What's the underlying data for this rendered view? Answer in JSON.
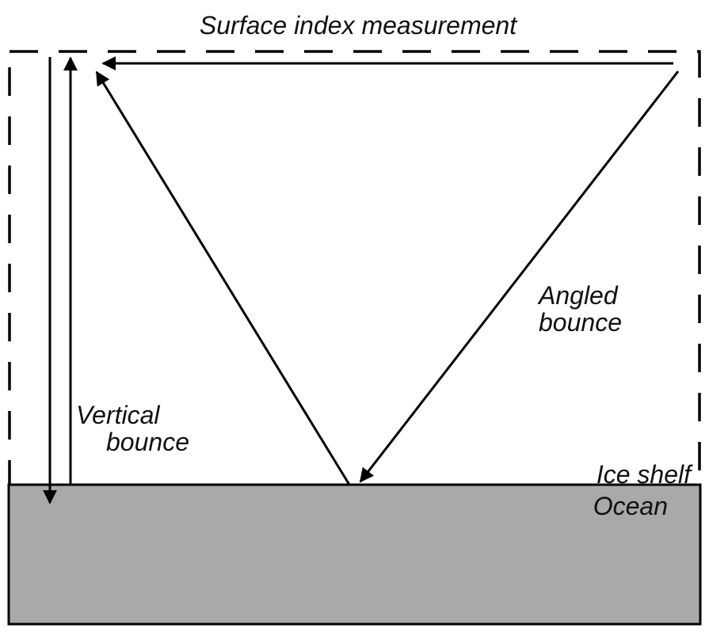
{
  "title": "Surface index measurement",
  "labels": {
    "vertical": [
      "Vertical",
      "bounce"
    ],
    "angled": [
      "Angled",
      "bounce"
    ],
    "ice_shelf": "Ice shelf",
    "ocean": "Ocean"
  },
  "colors": {
    "stroke": "#000000",
    "ocean_fill": "#a9a9a9",
    "background": "#ffffff"
  }
}
